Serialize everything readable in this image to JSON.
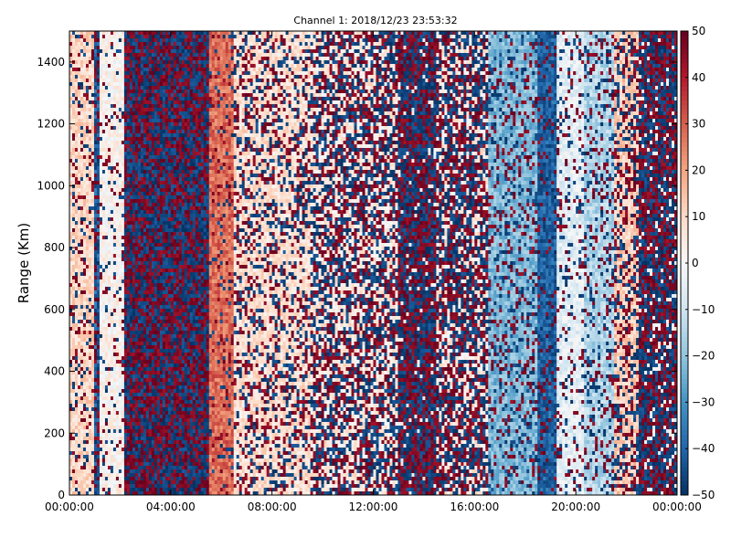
{
  "chart_data": {
    "type": "heatmap",
    "title": "Channel 1: 2018/12/23 23:53:32",
    "xlabel": "",
    "ylabel": "Range (Km)",
    "x_ticks": [
      "00:00:00",
      "04:00:00",
      "08:00:00",
      "12:00:00",
      "16:00:00",
      "20:00:00",
      "00:00:00"
    ],
    "xlim_hours": [
      0,
      24
    ],
    "y_ticks": [
      0,
      200,
      400,
      600,
      800,
      1000,
      1200,
      1400
    ],
    "ylim": [
      0,
      1500
    ],
    "colorbar": {
      "range": [
        -50,
        50
      ],
      "ticks": [
        50,
        40,
        30,
        20,
        10,
        0,
        -10,
        -20,
        -30,
        -40,
        -50
      ],
      "colormap": "RdBu_r",
      "low_color": "#053061",
      "mid_color": "#f7f7f7",
      "high_color": "#67001f"
    },
    "column_bands_hours": [
      {
        "from": 0.0,
        "to": 1.0,
        "level": 10,
        "noise": 0.2
      },
      {
        "from": 1.0,
        "to": 1.2,
        "level": -40,
        "noise": 0.6
      },
      {
        "from": 1.2,
        "to": 2.2,
        "level": 2,
        "noise": 0.15
      },
      {
        "from": 2.2,
        "to": 5.5,
        "level": 0,
        "noise": 1.0
      },
      {
        "from": 5.5,
        "to": 6.5,
        "level": 28,
        "noise": 0.15
      },
      {
        "from": 6.5,
        "to": 9.5,
        "level": 8,
        "noise": 0.35
      },
      {
        "from": 9.5,
        "to": 13.0,
        "level": 5,
        "noise": 0.6
      },
      {
        "from": 13.0,
        "to": 14.5,
        "level": 0,
        "noise": 0.95
      },
      {
        "from": 14.5,
        "to": 16.5,
        "level": 5,
        "noise": 0.7
      },
      {
        "from": 16.5,
        "to": 18.5,
        "level": -22,
        "noise": 0.25
      },
      {
        "from": 18.5,
        "to": 19.2,
        "level": -40,
        "noise": 0.25
      },
      {
        "from": 19.2,
        "to": 20.3,
        "level": -5,
        "noise": 0.2
      },
      {
        "from": 20.3,
        "to": 21.5,
        "level": -15,
        "noise": 0.25
      },
      {
        "from": 21.5,
        "to": 22.5,
        "level": 12,
        "noise": 0.45
      },
      {
        "from": 22.5,
        "to": 24.0,
        "level": 0,
        "noise": 0.9
      }
    ]
  }
}
